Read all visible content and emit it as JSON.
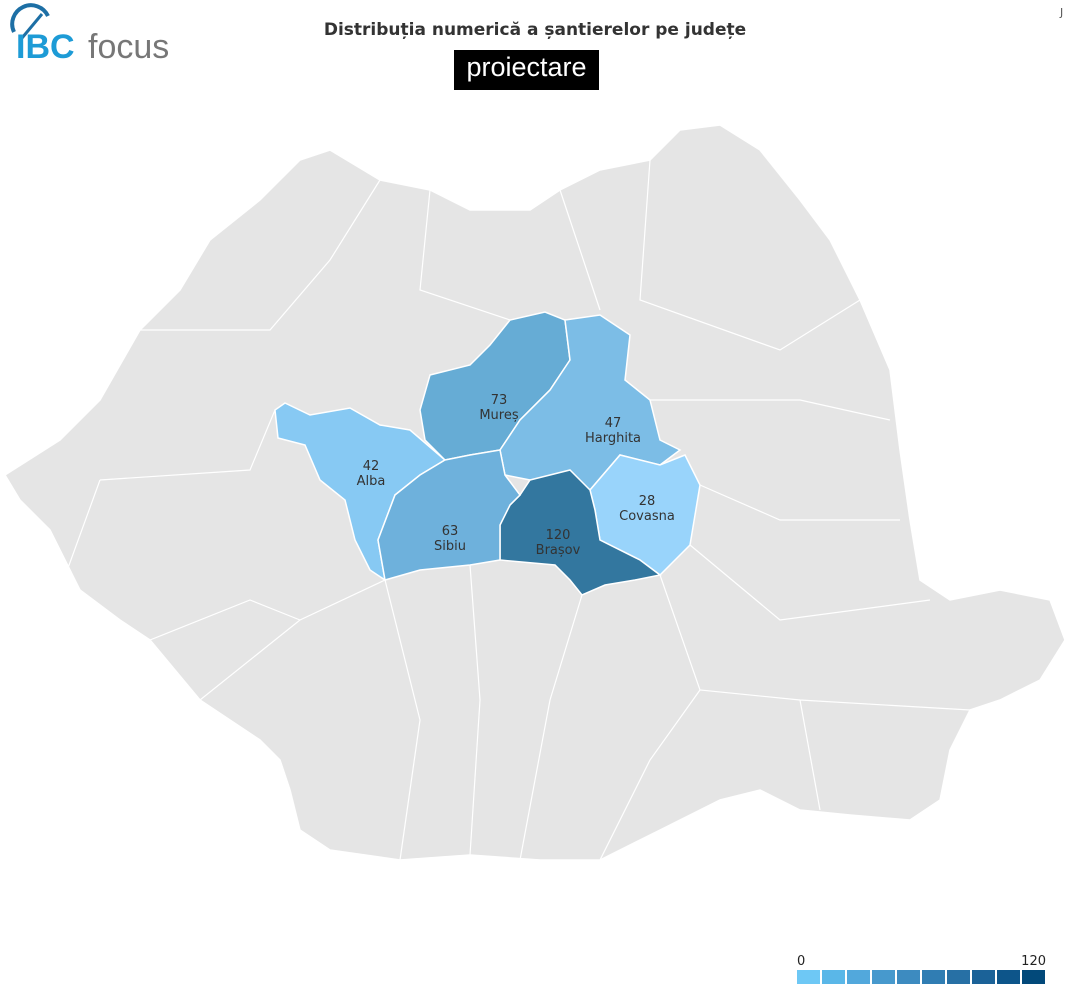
{
  "logo": {
    "text_ibc": "IBC",
    "text_focus": "focus"
  },
  "title": "Distribuția numerică a șantierelor pe județe",
  "badge": "proiectare",
  "corner": "J",
  "colors": {
    "base": "#e5e5e5",
    "border": "#ffffff"
  },
  "regions": [
    {
      "name": "Alba",
      "value": 42,
      "color": "#87c9f3"
    },
    {
      "name": "Mureș",
      "value": 73,
      "color": "#66acd5"
    },
    {
      "name": "Harghita",
      "value": 47,
      "color": "#7cbde6"
    },
    {
      "name": "Covasna",
      "value": 28,
      "color": "#99d4fb"
    },
    {
      "name": "Brașov",
      "value": 120,
      "color": "#33779f"
    },
    {
      "name": "Sibiu",
      "value": 63,
      "color": "#6eb1dc"
    }
  ],
  "legend": {
    "min": "0",
    "max": "120",
    "colors": [
      "#6ec8f5",
      "#5ab7e8",
      "#52a8dc",
      "#4799cd",
      "#3d8bc0",
      "#307db3",
      "#2770a5",
      "#1b6298",
      "#0d558a",
      "#02497a"
    ]
  }
}
